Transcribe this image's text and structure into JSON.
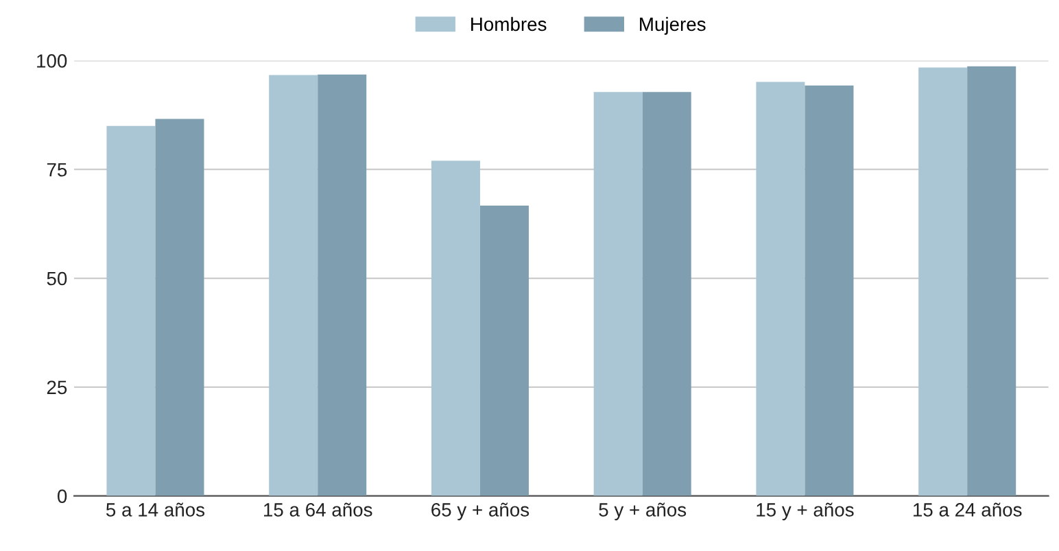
{
  "chart_data": {
    "type": "bar",
    "categories": [
      "5 a 14 años",
      "15 a 64 años",
      "65 y + años",
      "5 y + años",
      "15 y + años",
      "15 a 24 años"
    ],
    "series": [
      {
        "name": "Hombres",
        "color": "#aac6d4",
        "values": [
          85,
          96.7,
          77,
          92.8,
          95.1,
          98.4
        ]
      },
      {
        "name": "Mujeres",
        "color": "#7f9fb0",
        "values": [
          86.6,
          96.8,
          66.7,
          92.8,
          94.3,
          98.7
        ]
      }
    ],
    "ylim": [
      0,
      100
    ],
    "yticks": [
      0,
      25,
      50,
      75,
      100
    ],
    "grid": "y",
    "legend": "top"
  }
}
